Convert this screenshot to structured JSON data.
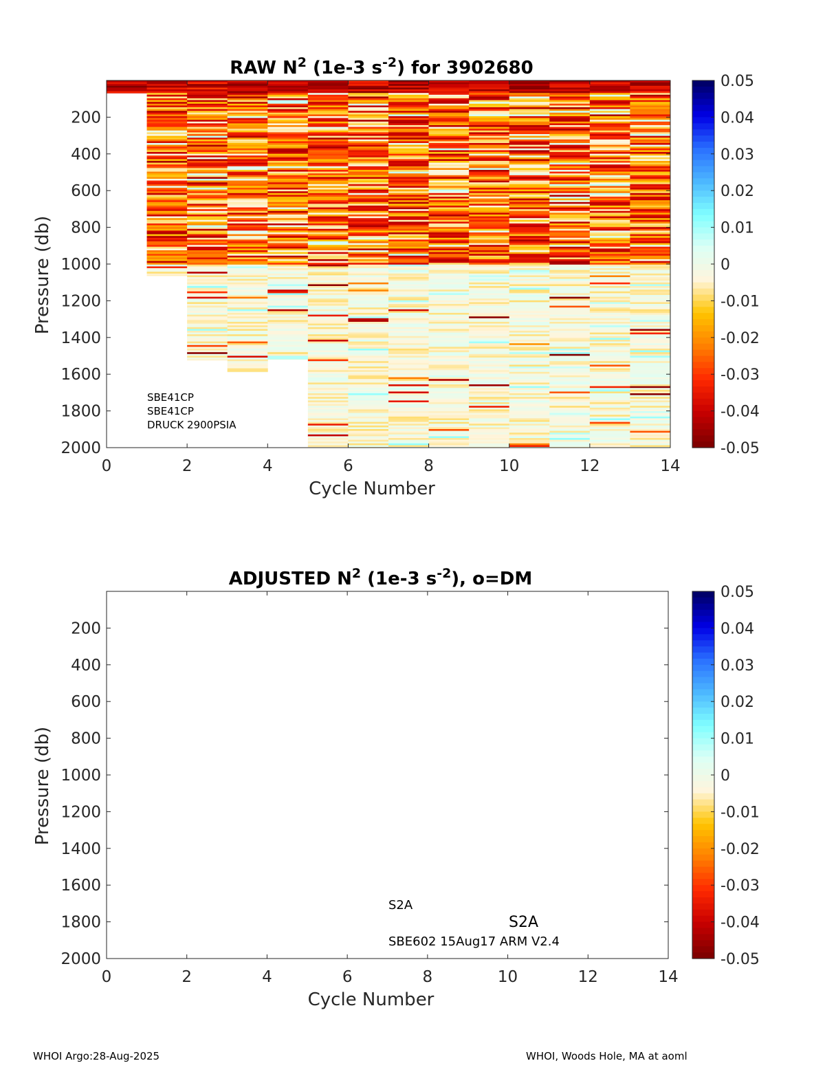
{
  "float_id": "3902680",
  "palette": {
    "axis": "#262626",
    "title": "#000000",
    "colorbar_stops": [
      "#800000",
      "#c80000",
      "#ff2a00",
      "#ff8000",
      "#ffc400",
      "#fff5dc",
      "#dcfff5",
      "#80ffff",
      "#4db8ff",
      "#2a70ff",
      "#0000e6",
      "#00006a"
    ]
  },
  "chart_data": [
    {
      "type": "heatmap",
      "title_parts": [
        "RAW N",
        "2",
        " (1e-3 s",
        "-2",
        ") for 3902680"
      ],
      "xlabel": "Cycle Number",
      "ylabel": "Pressure (db)",
      "xlim": [
        0,
        14
      ],
      "ylim": [
        0,
        2000
      ],
      "y_reversed": true,
      "xticks": [
        "0",
        "2",
        "4",
        "6",
        "8",
        "10",
        "12",
        "14"
      ],
      "yticks": [
        "200",
        "400",
        "600",
        "800",
        "1000",
        "1200",
        "1400",
        "1600",
        "1800",
        "2000"
      ],
      "colorbar": {
        "min": -0.05,
        "max": 0.05,
        "ticks": [
          "0.05",
          "0.04",
          "0.03",
          "0.02",
          "0.01",
          "0",
          "-0.01",
          "-0.02",
          "-0.03",
          "-0.04",
          "-0.05"
        ]
      },
      "profiles": [
        {
          "cycle": 0,
          "max_pressure": 70
        },
        {
          "cycle": 1,
          "max_pressure": 1065
        },
        {
          "cycle": 2,
          "max_pressure": 1525
        },
        {
          "cycle": 3,
          "max_pressure": 1590
        },
        {
          "cycle": 4,
          "max_pressure": 1520
        },
        {
          "cycle": 5,
          "max_pressure": 2000
        },
        {
          "cycle": 6,
          "max_pressure": 2000
        },
        {
          "cycle": 7,
          "max_pressure": 2000
        },
        {
          "cycle": 8,
          "max_pressure": 2000
        },
        {
          "cycle": 9,
          "max_pressure": 2000
        },
        {
          "cycle": 10,
          "max_pressure": 2000
        },
        {
          "cycle": 11,
          "max_pressure": 2000
        },
        {
          "cycle": 12,
          "max_pressure": 2000
        },
        {
          "cycle": 13,
          "max_pressure": 2000
        }
      ],
      "annotations": [
        "SBE41CP",
        "SBE41CP",
        "DRUCK 2900PSIA"
      ]
    },
    {
      "type": "heatmap",
      "title_parts": [
        "ADJUSTED N",
        "2",
        " (1e-3 s",
        "-2",
        "), o=DM"
      ],
      "xlabel": "Cycle Number",
      "ylabel": "Pressure (db)",
      "xlim": [
        0,
        14
      ],
      "ylim": [
        0,
        2000
      ],
      "y_reversed": true,
      "xticks": [
        "0",
        "2",
        "4",
        "6",
        "8",
        "10",
        "12",
        "14"
      ],
      "yticks": [
        "200",
        "400",
        "600",
        "800",
        "1000",
        "1200",
        "1400",
        "1600",
        "1800",
        "2000"
      ],
      "colorbar": {
        "min": -0.05,
        "max": 0.05,
        "ticks": [
          "0.05",
          "0.04",
          "0.03",
          "0.02",
          "0.01",
          "0",
          "-0.01",
          "-0.02",
          "-0.03",
          "-0.04",
          "-0.05"
        ]
      },
      "profiles": [],
      "annotations": [
        "S2A",
        "S2A",
        "SBE602 15Aug17 ARM V2.4"
      ]
    }
  ],
  "footer": {
    "left": "WHOI Argo:28-Aug-2025",
    "right": "WHOI, Woods Hole, MA at aoml"
  }
}
